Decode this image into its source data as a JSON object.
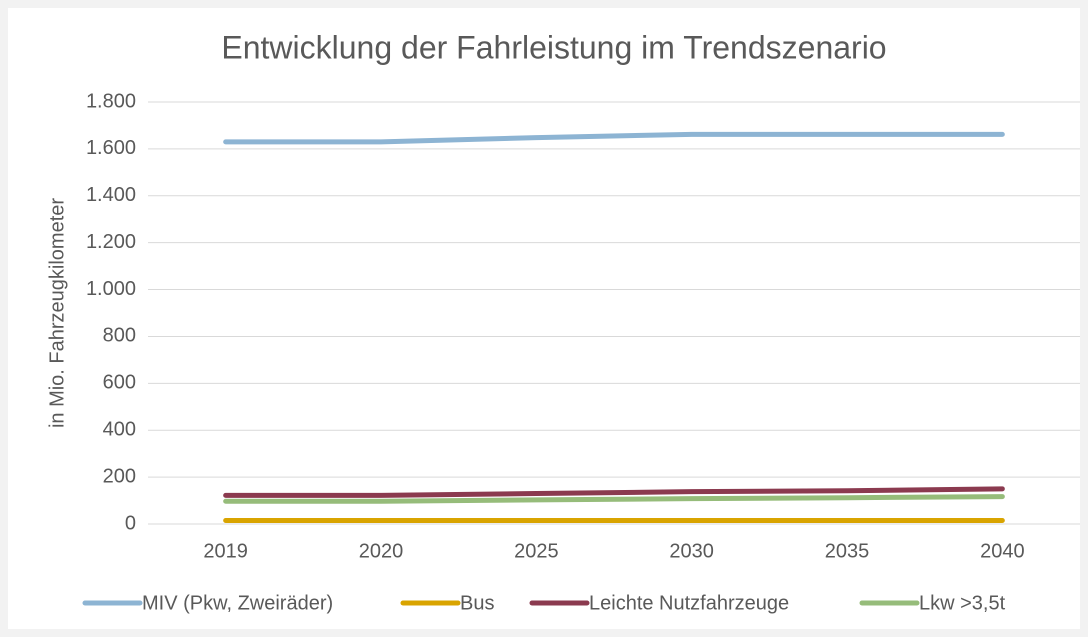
{
  "chart_data": {
    "type": "line",
    "title": "Entwicklung der Fahrleistung im Trendszenario",
    "y_label": "in Mio. Fahrzeugkilometer",
    "categories": [
      "2019",
      "2020",
      "2025",
      "2030",
      "2035",
      "2040"
    ],
    "series": [
      {
        "name": "MIV (Pkw, Zweiräder)",
        "color": "#8db4d3",
        "values": [
          1630,
          1630,
          1648,
          1662,
          1662,
          1662
        ]
      },
      {
        "name": "Bus",
        "color": "#d9a400",
        "values": [
          15,
          15,
          15,
          15,
          15,
          15
        ]
      },
      {
        "name": "Leichte Nutzfahrzeuge",
        "color": "#8b3a4f",
        "values": [
          122,
          122,
          130,
          138,
          142,
          150
        ]
      },
      {
        "name": "Lkw >3,5t",
        "color": "#96bc7a",
        "values": [
          97,
          97,
          103,
          108,
          112,
          117
        ]
      }
    ],
    "ylim": [
      0,
      1800
    ],
    "yticks": [
      0,
      200,
      400,
      600,
      800,
      {
        "value": 1000,
        "label": "1.000"
      },
      {
        "value": 1200,
        "label": "1.200"
      },
      {
        "value": 1400,
        "label": "1.400"
      },
      {
        "value": 1600,
        "label": "1.600"
      },
      {
        "value": 1800,
        "label": "1.800"
      }
    ],
    "grid": true,
    "legend": "bottom"
  }
}
